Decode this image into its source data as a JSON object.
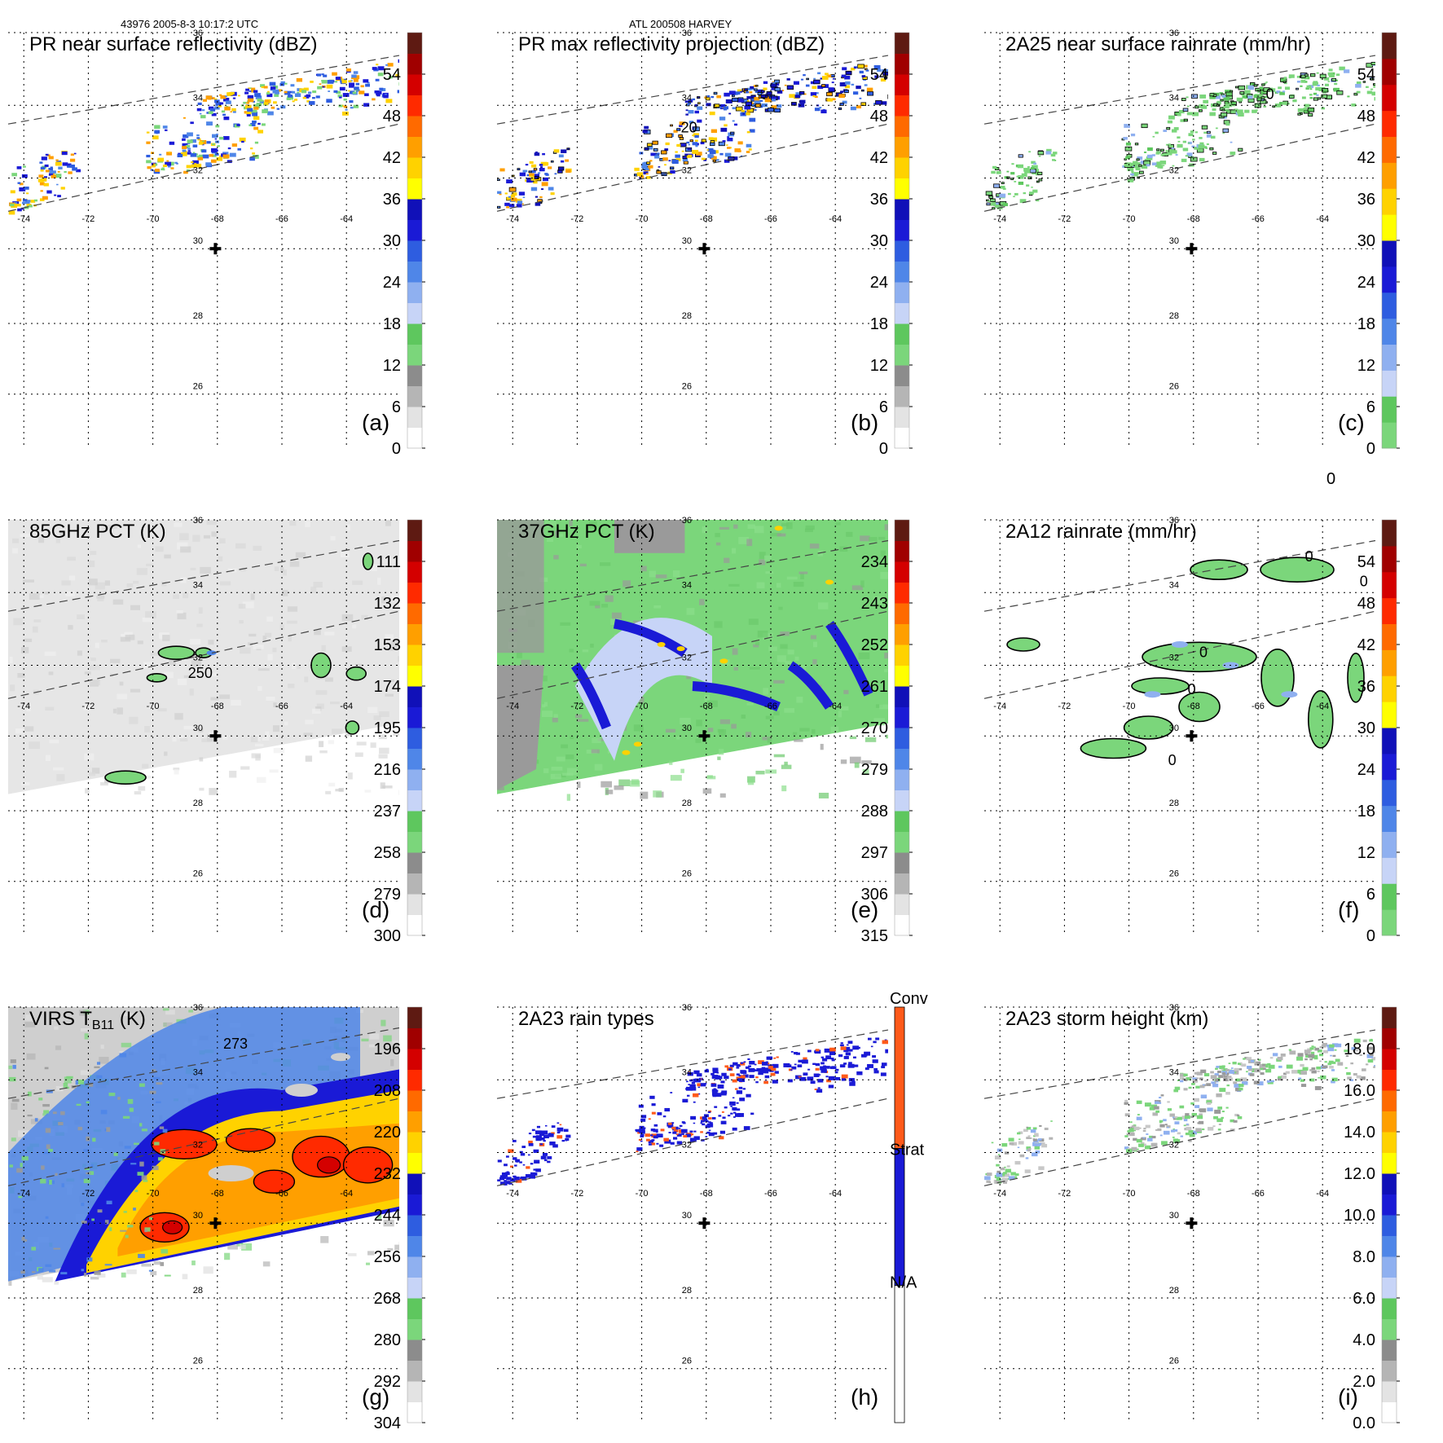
{
  "header": {
    "left": "43976 2005-8-3 10:17:2 UTC",
    "center": "ATL 200508 HARVEY"
  },
  "stray_label": "0",
  "grid": {
    "lon_labels": [
      "-74",
      "-72",
      "-70",
      "-68",
      "-66",
      "-64"
    ],
    "lat_labels": [
      "36",
      "34",
      "32",
      "30",
      "28",
      "26"
    ]
  },
  "panels": [
    {
      "id": "a",
      "title": "PR near surface reflectivity (dBZ)",
      "label": "(a)",
      "ticks": [
        "54",
        "48",
        "42",
        "36",
        "30",
        "24",
        "18",
        "12",
        "6",
        "0"
      ],
      "colors": [
        "#ffffff",
        "#e3e3e3",
        "#b5b5b5",
        "#8c8c8c",
        "#7bd67b",
        "#5ec75e",
        "#c7d4f7",
        "#8fb0f0",
        "#4f86e8",
        "#2e5de0",
        "#1a1ad6",
        "#1010b8",
        "#ffff00",
        "#ffd200",
        "#ff9f00",
        "#ff6a00",
        "#ff2a00",
        "#d40000",
        "#a00000",
        "#5e1a12"
      ],
      "contours": [],
      "content": "swath-pr"
    },
    {
      "id": "b",
      "title": "PR max reflectivity projection (dBZ)",
      "label": "(b)",
      "ticks": [
        "54",
        "48",
        "42",
        "36",
        "30",
        "24",
        "18",
        "12",
        "6",
        "0"
      ],
      "colors": [
        "#ffffff",
        "#e3e3e3",
        "#b5b5b5",
        "#8c8c8c",
        "#7bd67b",
        "#5ec75e",
        "#c7d4f7",
        "#8fb0f0",
        "#4f86e8",
        "#2e5de0",
        "#1a1ad6",
        "#1010b8",
        "#ffff00",
        "#ffd200",
        "#ff9f00",
        "#ff6a00",
        "#ff2a00",
        "#d40000",
        "#a00000",
        "#5e1a12"
      ],
      "contours": [
        "20"
      ],
      "content": "swath-prmax"
    },
    {
      "id": "c",
      "title": "2A25 near surface rainrate (mm/hr)",
      "label": "(c)",
      "ticks": [
        "54",
        "48",
        "42",
        "36",
        "30",
        "24",
        "18",
        "12",
        "6",
        "0"
      ],
      "colors": [
        "#7bd67b",
        "#5ec75e",
        "#c7d4f7",
        "#8fb0f0",
        "#4f86e8",
        "#2e5de0",
        "#1a1ad6",
        "#1010b8",
        "#ffff00",
        "#ffd200",
        "#ff9f00",
        "#ff6a00",
        "#ff2a00",
        "#d40000",
        "#a00000",
        "#5e1a12"
      ],
      "contours": [
        "0"
      ],
      "content": "swath-rain"
    },
    {
      "id": "d",
      "title": "85GHz PCT (K)",
      "label": "(d)",
      "ticks": [
        "111",
        "132",
        "153",
        "174",
        "195",
        "216",
        "237",
        "258",
        "279",
        "300"
      ],
      "colors": [
        "#ffffff",
        "#e3e3e3",
        "#b5b5b5",
        "#8c8c8c",
        "#7bd67b",
        "#5ec75e",
        "#c7d4f7",
        "#8fb0f0",
        "#4f86e8",
        "#2e5de0",
        "#1a1ad6",
        "#1010b8",
        "#ffff00",
        "#ffd200",
        "#ff9f00",
        "#ff6a00",
        "#ff2a00",
        "#d40000",
        "#a00000",
        "#5e1a12"
      ],
      "contours": [
        "250"
      ],
      "content": "tmi-85"
    },
    {
      "id": "e",
      "title": "37GHz PCT (K)",
      "label": "(e)",
      "ticks": [
        "234",
        "243",
        "252",
        "261",
        "270",
        "279",
        "288",
        "297",
        "306",
        "315"
      ],
      "colors": [
        "#ffffff",
        "#e3e3e3",
        "#b5b5b5",
        "#8c8c8c",
        "#7bd67b",
        "#5ec75e",
        "#c7d4f7",
        "#8fb0f0",
        "#4f86e8",
        "#2e5de0",
        "#1a1ad6",
        "#1010b8",
        "#ffff00",
        "#ffd200",
        "#ff9f00",
        "#ff6a00",
        "#ff2a00",
        "#d40000",
        "#a00000",
        "#5e1a12"
      ],
      "contours": [],
      "content": "tmi-37"
    },
    {
      "id": "f",
      "title": "2A12 rainrate (mm/hr)",
      "label": "(f)",
      "ticks": [
        "54",
        "48",
        "42",
        "36",
        "30",
        "24",
        "18",
        "12",
        "6",
        "0"
      ],
      "colors": [
        "#7bd67b",
        "#5ec75e",
        "#c7d4f7",
        "#8fb0f0",
        "#4f86e8",
        "#2e5de0",
        "#1a1ad6",
        "#1010b8",
        "#ffff00",
        "#ffd200",
        "#ff9f00",
        "#ff6a00",
        "#ff2a00",
        "#d40000",
        "#a00000",
        "#5e1a12"
      ],
      "contours": [
        "0",
        "0",
        "0",
        "0",
        "0"
      ],
      "content": "tmi-rain"
    },
    {
      "id": "g",
      "title": "VIRS T",
      "title_sub": "B11",
      "title_suffix": " (K)",
      "label": "(g)",
      "ticks": [
        "196",
        "208",
        "220",
        "232",
        "244",
        "256",
        "268",
        "280",
        "292",
        "304"
      ],
      "colors": [
        "#ffffff",
        "#e3e3e3",
        "#b5b5b5",
        "#8c8c8c",
        "#7bd67b",
        "#5ec75e",
        "#c7d4f7",
        "#8fb0f0",
        "#4f86e8",
        "#2e5de0",
        "#1a1ad6",
        "#1010b8",
        "#ffff00",
        "#ffd200",
        "#ff9f00",
        "#ff6a00",
        "#ff2a00",
        "#d40000",
        "#a00000",
        "#5e1a12"
      ],
      "contours": [
        "273"
      ],
      "content": "virs"
    },
    {
      "id": "h",
      "title": "2A23 rain types",
      "label": "(h)",
      "ticks": [],
      "categories": [
        "Conv",
        "Strat",
        "N/A"
      ],
      "colors": [
        "#ffffff",
        "#1a1ad6",
        "#ff5a1a"
      ],
      "contours": [],
      "content": "raintype"
    },
    {
      "id": "i",
      "title": "2A23 storm height (km)",
      "label": "(i)",
      "ticks": [
        "18.0",
        "16.0",
        "14.0",
        "12.0",
        "10.0",
        "8.0",
        "6.0",
        "4.0",
        "2.0",
        "0.0"
      ],
      "colors": [
        "#ffffff",
        "#e3e3e3",
        "#b5b5b5",
        "#8c8c8c",
        "#7bd67b",
        "#5ec75e",
        "#c7d4f7",
        "#8fb0f0",
        "#4f86e8",
        "#2e5de0",
        "#1a1ad6",
        "#1010b8",
        "#ffff00",
        "#ffd200",
        "#ff9f00",
        "#ff6a00",
        "#ff2a00",
        "#d40000",
        "#a00000",
        "#5e1a12"
      ],
      "contours": [],
      "content": "height"
    }
  ]
}
